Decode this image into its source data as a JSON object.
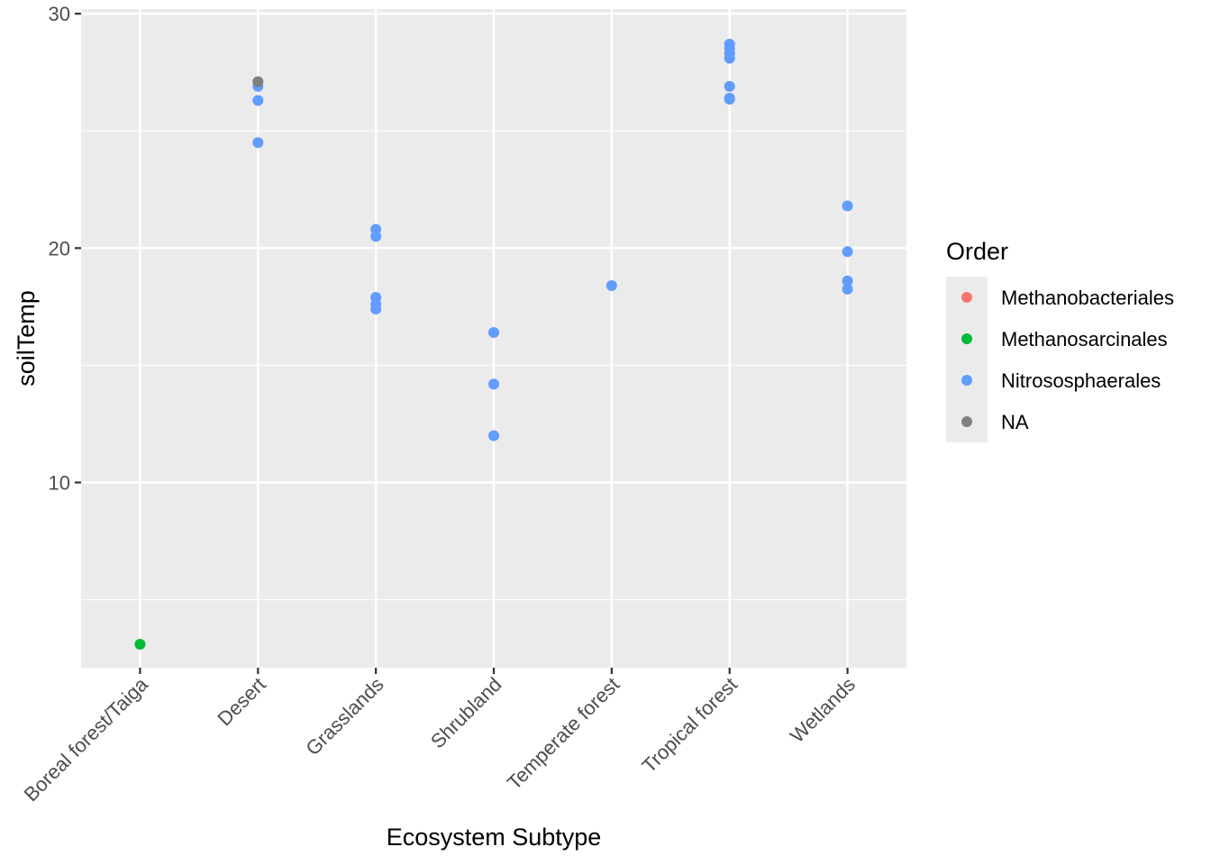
{
  "chart_data": {
    "type": "scatter",
    "title": "",
    "xlabel": "Ecosystem Subtype",
    "ylabel": "soilTemp",
    "categories": [
      "Boreal forest/Taiga",
      "Desert",
      "Grasslands",
      "Shrubland",
      "Temperate forest",
      "Tropical forest",
      "Wetlands"
    ],
    "ylim": [
      2.1,
      30.2
    ],
    "yticks": [
      10,
      20,
      30
    ],
    "grid": true,
    "legend": {
      "title": "Order",
      "position": "right",
      "entries": [
        {
          "name": "Methanobacteriales",
          "color": "#F8766D"
        },
        {
          "name": "Methanosarcinales",
          "color": "#00BA38"
        },
        {
          "name": "Nitrososphaerales",
          "color": "#619CFF"
        },
        {
          "name": "NA",
          "color": "#808080"
        }
      ]
    },
    "series": [
      {
        "name": "Methanobacteriales",
        "color": "#F8766D",
        "points": []
      },
      {
        "name": "Methanosarcinales",
        "color": "#00BA38",
        "points": [
          {
            "x": "Boreal forest/Taiga",
            "y": 3.1
          }
        ]
      },
      {
        "name": "Nitrososphaerales",
        "color": "#619CFF",
        "points": [
          {
            "x": "Desert",
            "y": 26.9
          },
          {
            "x": "Desert",
            "y": 26.3
          },
          {
            "x": "Desert",
            "y": 24.5
          },
          {
            "x": "Grasslands",
            "y": 20.8
          },
          {
            "x": "Grasslands",
            "y": 20.5
          },
          {
            "x": "Grasslands",
            "y": 17.9
          },
          {
            "x": "Grasslands",
            "y": 17.6
          },
          {
            "x": "Grasslands",
            "y": 17.4
          },
          {
            "x": "Shrubland",
            "y": 16.4
          },
          {
            "x": "Shrubland",
            "y": 14.2
          },
          {
            "x": "Shrubland",
            "y": 12.0
          },
          {
            "x": "Temperate forest",
            "y": 18.4
          },
          {
            "x": "Tropical forest",
            "y": 28.7
          },
          {
            "x": "Tropical forest",
            "y": 28.5
          },
          {
            "x": "Tropical forest",
            "y": 28.3
          },
          {
            "x": "Tropical forest",
            "y": 28.1
          },
          {
            "x": "Tropical forest",
            "y": 26.9
          },
          {
            "x": "Tropical forest",
            "y": 26.4
          },
          {
            "x": "Tropical forest",
            "y": 26.35
          },
          {
            "x": "Wetlands",
            "y": 21.8
          },
          {
            "x": "Wetlands",
            "y": 19.85
          },
          {
            "x": "Wetlands",
            "y": 18.6
          },
          {
            "x": "Wetlands",
            "y": 18.25
          }
        ]
      },
      {
        "name": "NA",
        "color": "#808080",
        "points": [
          {
            "x": "Desert",
            "y": 27.1
          }
        ]
      }
    ]
  }
}
